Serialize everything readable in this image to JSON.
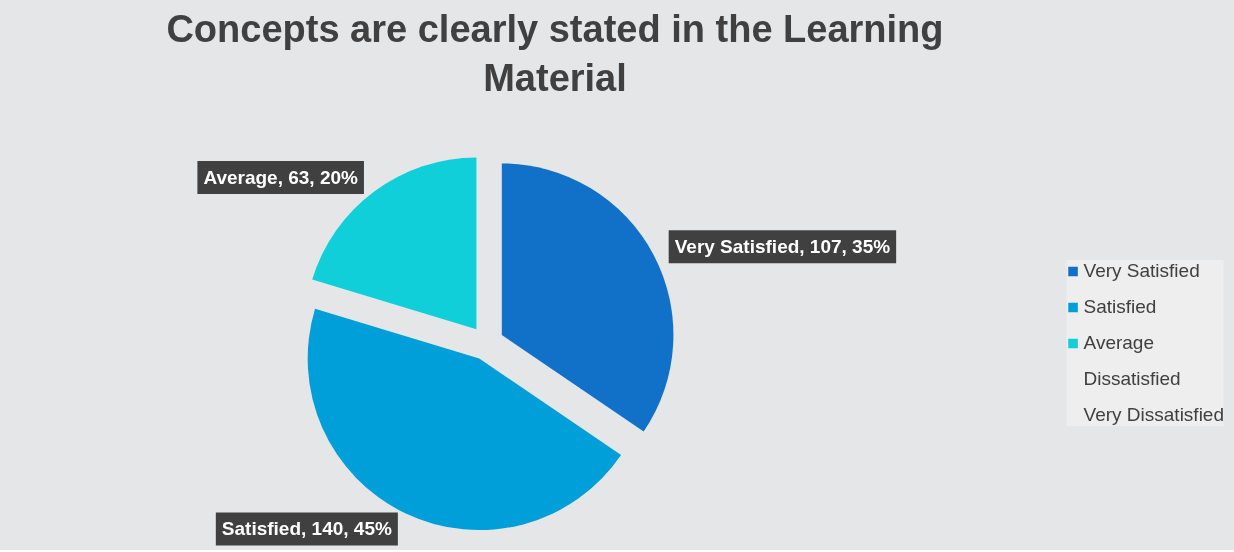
{
  "chart_data": {
    "type": "pie",
    "title": "Concepts are clearly stated in the Learning Material",
    "categories": [
      "Very Satisfied",
      "Satisfied",
      "Average",
      "Dissatisfied",
      "Very Dissatisfied"
    ],
    "values": [
      107,
      140,
      63,
      0,
      0
    ],
    "colors": [
      "#1170c8",
      "#009fd9",
      "#10cfd8",
      "#1dc79a",
      "#5fc45c"
    ],
    "value_labels": [
      "Very Satisfied, 107, 35%",
      "Satisfied, 140, 45%",
      "Average, 63, 20%",
      null,
      null
    ],
    "legend": "right"
  }
}
